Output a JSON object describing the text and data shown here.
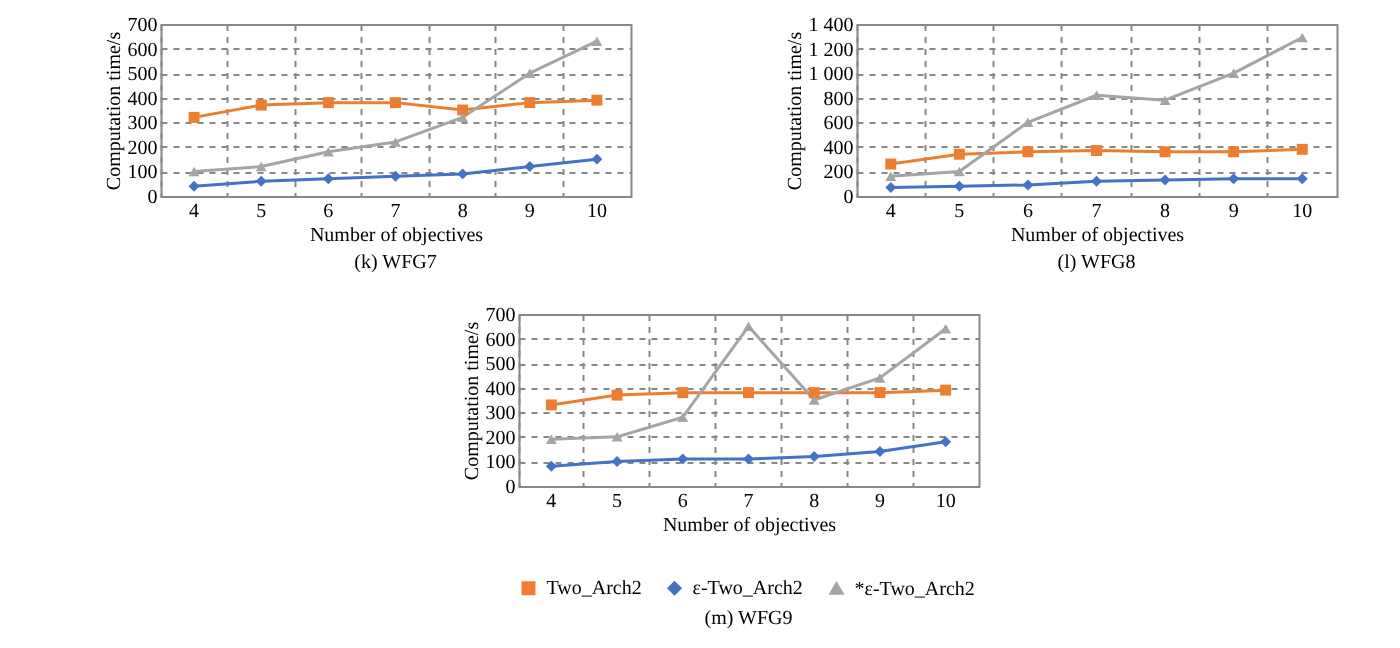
{
  "chart_data": [
    {
      "type": "line",
      "title": "(k) WFG7",
      "xlabel": "Number of objectives",
      "ylabel": "Computation time/s",
      "categories": [
        "4",
        "5",
        "6",
        "7",
        "8",
        "9",
        "10"
      ],
      "ylim": [
        0,
        700
      ],
      "yticks": [
        0,
        100,
        200,
        300,
        400,
        500,
        600,
        700
      ],
      "grid": true,
      "series": [
        {
          "color": "#ed7d31",
          "marker": "square",
          "values": [
            320,
            370,
            380,
            380,
            350,
            380,
            390
          ]
        },
        {
          "color": "#4472c4",
          "marker": "diamond",
          "values": [
            40,
            60,
            70,
            80,
            90,
            120,
            150
          ]
        },
        {
          "color": "#a5a5a5",
          "marker": "triangle",
          "values": [
            100,
            120,
            180,
            220,
            320,
            500,
            630
          ]
        }
      ]
    },
    {
      "type": "line",
      "title": "(l) WFG8",
      "xlabel": "Number of objectives",
      "ylabel": "Computation time/s",
      "categories": [
        "4",
        "5",
        "6",
        "7",
        "8",
        "9",
        "10"
      ],
      "ylim": [
        0,
        1400
      ],
      "yticks": [
        0,
        200,
        400,
        600,
        800,
        {
          "value": 1000,
          "label": "1 000"
        },
        {
          "value": 1200,
          "label": "1 200"
        },
        {
          "value": 1400,
          "label": "1 400"
        }
      ],
      "grid": true,
      "series": [
        {
          "color": "#ed7d31",
          "marker": "square",
          "values": [
            260,
            340,
            360,
            370,
            360,
            360,
            380
          ]
        },
        {
          "color": "#4472c4",
          "marker": "diamond",
          "values": [
            70,
            80,
            90,
            120,
            130,
            140,
            140
          ]
        },
        {
          "color": "#a5a5a5",
          "marker": "triangle",
          "values": [
            160,
            200,
            600,
            820,
            780,
            1000,
            1290
          ]
        }
      ]
    },
    {
      "type": "line",
      "title": "(m) WFG9",
      "xlabel": "Number of objectives",
      "ylabel": "Computation time/s",
      "categories": [
        "4",
        "5",
        "6",
        "7",
        "8",
        "9",
        "10"
      ],
      "ylim": [
        0,
        700
      ],
      "yticks": [
        0,
        100,
        200,
        300,
        400,
        500,
        600,
        700
      ],
      "grid": true,
      "legend": "bottom",
      "series": [
        {
          "name": "Two_Arch2",
          "color": "#ed7d31",
          "marker": "square",
          "values": [
            330,
            370,
            380,
            380,
            380,
            380,
            390
          ]
        },
        {
          "name": "ε-Two_Arch2",
          "color": "#4472c4",
          "marker": "diamond",
          "values": [
            80,
            100,
            110,
            110,
            120,
            140,
            180
          ]
        },
        {
          "name": "*ε-Two_Arch2",
          "color": "#a5a5a5",
          "marker": "triangle",
          "values": [
            190,
            200,
            280,
            650,
            350,
            440,
            640
          ]
        }
      ]
    }
  ]
}
